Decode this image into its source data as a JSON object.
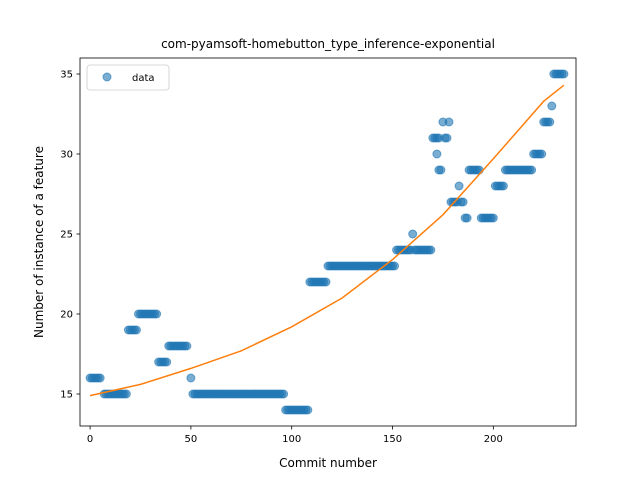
{
  "chart_data": {
    "type": "scatter",
    "title": "com-pyamsoft-homebutton_type_inference-exponential",
    "xlabel": "Commit number",
    "ylabel": "Number of instance of a feature",
    "xlim": [
      -5,
      241
    ],
    "ylim": [
      13,
      36
    ],
    "xticks": [
      0,
      50,
      100,
      150,
      200
    ],
    "yticks": [
      15,
      20,
      25,
      30,
      35
    ],
    "grid": false,
    "legend": {
      "placement": "top-left",
      "entries": [
        "data"
      ]
    },
    "colors": {
      "data": "#1f77b4",
      "fit": "#ff7f0e"
    },
    "series": [
      {
        "name": "data",
        "kind": "scatter",
        "points": [
          [
            0,
            16
          ],
          [
            1,
            16
          ],
          [
            2,
            16
          ],
          [
            3,
            16
          ],
          [
            4,
            16
          ],
          [
            5,
            16
          ],
          [
            7,
            15
          ],
          [
            8,
            15
          ],
          [
            9,
            15
          ],
          [
            10,
            15
          ],
          [
            11,
            15
          ],
          [
            12,
            15
          ],
          [
            13,
            15
          ],
          [
            14,
            15
          ],
          [
            15,
            15
          ],
          [
            16,
            15
          ],
          [
            17,
            15
          ],
          [
            18,
            15
          ],
          [
            19,
            19
          ],
          [
            20,
            19
          ],
          [
            21,
            19
          ],
          [
            22,
            19
          ],
          [
            23,
            19
          ],
          [
            24,
            20
          ],
          [
            25,
            20
          ],
          [
            26,
            20
          ],
          [
            27,
            20
          ],
          [
            28,
            20
          ],
          [
            29,
            20
          ],
          [
            30,
            20
          ],
          [
            31,
            20
          ],
          [
            32,
            20
          ],
          [
            33,
            20
          ],
          [
            34,
            17
          ],
          [
            35,
            17
          ],
          [
            36,
            17
          ],
          [
            37,
            17
          ],
          [
            38,
            17
          ],
          [
            39,
            18
          ],
          [
            40,
            18
          ],
          [
            41,
            18
          ],
          [
            42,
            18
          ],
          [
            43,
            18
          ],
          [
            44,
            18
          ],
          [
            45,
            18
          ],
          [
            46,
            18
          ],
          [
            47,
            18
          ],
          [
            48,
            18
          ],
          [
            50,
            16
          ],
          [
            51,
            15
          ],
          [
            52,
            15
          ],
          [
            53,
            15
          ],
          [
            54,
            15
          ],
          [
            55,
            15
          ],
          [
            56,
            15
          ],
          [
            57,
            15
          ],
          [
            58,
            15
          ],
          [
            59,
            15
          ],
          [
            60,
            15
          ],
          [
            61,
            15
          ],
          [
            62,
            15
          ],
          [
            63,
            15
          ],
          [
            64,
            15
          ],
          [
            65,
            15
          ],
          [
            66,
            15
          ],
          [
            67,
            15
          ],
          [
            68,
            15
          ],
          [
            69,
            15
          ],
          [
            70,
            15
          ],
          [
            71,
            15
          ],
          [
            72,
            15
          ],
          [
            73,
            15
          ],
          [
            74,
            15
          ],
          [
            75,
            15
          ],
          [
            76,
            15
          ],
          [
            77,
            15
          ],
          [
            78,
            15
          ],
          [
            79,
            15
          ],
          [
            80,
            15
          ],
          [
            81,
            15
          ],
          [
            82,
            15
          ],
          [
            83,
            15
          ],
          [
            84,
            15
          ],
          [
            85,
            15
          ],
          [
            86,
            15
          ],
          [
            87,
            15
          ],
          [
            88,
            15
          ],
          [
            89,
            15
          ],
          [
            90,
            15
          ],
          [
            91,
            15
          ],
          [
            92,
            15
          ],
          [
            93,
            15
          ],
          [
            94,
            15
          ],
          [
            95,
            15
          ],
          [
            96,
            15
          ],
          [
            97,
            14
          ],
          [
            98,
            14
          ],
          [
            99,
            14
          ],
          [
            100,
            14
          ],
          [
            101,
            14
          ],
          [
            102,
            14
          ],
          [
            103,
            14
          ],
          [
            104,
            14
          ],
          [
            105,
            14
          ],
          [
            106,
            14
          ],
          [
            107,
            14
          ],
          [
            108,
            14
          ],
          [
            109,
            22
          ],
          [
            110,
            22
          ],
          [
            111,
            22
          ],
          [
            112,
            22
          ],
          [
            113,
            22
          ],
          [
            114,
            22
          ],
          [
            115,
            22
          ],
          [
            116,
            22
          ],
          [
            117,
            22
          ],
          [
            118,
            23
          ],
          [
            119,
            23
          ],
          [
            120,
            23
          ],
          [
            121,
            23
          ],
          [
            122,
            23
          ],
          [
            123,
            23
          ],
          [
            124,
            23
          ],
          [
            125,
            23
          ],
          [
            126,
            23
          ],
          [
            127,
            23
          ],
          [
            128,
            23
          ],
          [
            129,
            23
          ],
          [
            130,
            23
          ],
          [
            131,
            23
          ],
          [
            132,
            23
          ],
          [
            133,
            23
          ],
          [
            134,
            23
          ],
          [
            135,
            23
          ],
          [
            136,
            23
          ],
          [
            137,
            23
          ],
          [
            138,
            23
          ],
          [
            139,
            23
          ],
          [
            140,
            23
          ],
          [
            141,
            23
          ],
          [
            142,
            23
          ],
          [
            143,
            23
          ],
          [
            144,
            23
          ],
          [
            145,
            23
          ],
          [
            146,
            23
          ],
          [
            147,
            23
          ],
          [
            148,
            23
          ],
          [
            149,
            23
          ],
          [
            150,
            23
          ],
          [
            151,
            23
          ],
          [
            152,
            24
          ],
          [
            153,
            24
          ],
          [
            154,
            24
          ],
          [
            155,
            24
          ],
          [
            156,
            24
          ],
          [
            157,
            24
          ],
          [
            158,
            24
          ],
          [
            159,
            24
          ],
          [
            160,
            25
          ],
          [
            161,
            24
          ],
          [
            162,
            24
          ],
          [
            163,
            24
          ],
          [
            164,
            24
          ],
          [
            165,
            24
          ],
          [
            166,
            24
          ],
          [
            167,
            24
          ],
          [
            168,
            24
          ],
          [
            169,
            24
          ],
          [
            170,
            31
          ],
          [
            171,
            31
          ],
          [
            172,
            31
          ],
          [
            173,
            31
          ],
          [
            172,
            30
          ],
          [
            173,
            29
          ],
          [
            174,
            29
          ],
          [
            175,
            32
          ],
          [
            176,
            31
          ],
          [
            177,
            31
          ],
          [
            178,
            32
          ],
          [
            179,
            27
          ],
          [
            180,
            27
          ],
          [
            181,
            27
          ],
          [
            182,
            27
          ],
          [
            183,
            28
          ],
          [
            184,
            27
          ],
          [
            185,
            27
          ],
          [
            186,
            26
          ],
          [
            187,
            26
          ],
          [
            188,
            29
          ],
          [
            189,
            29
          ],
          [
            190,
            29
          ],
          [
            191,
            29
          ],
          [
            192,
            29
          ],
          [
            193,
            29
          ],
          [
            194,
            26
          ],
          [
            195,
            26
          ],
          [
            196,
            26
          ],
          [
            197,
            26
          ],
          [
            198,
            26
          ],
          [
            199,
            26
          ],
          [
            200,
            26
          ],
          [
            201,
            28
          ],
          [
            202,
            28
          ],
          [
            203,
            28
          ],
          [
            204,
            28
          ],
          [
            205,
            28
          ],
          [
            206,
            29
          ],
          [
            207,
            29
          ],
          [
            208,
            29
          ],
          [
            209,
            29
          ],
          [
            210,
            29
          ],
          [
            211,
            29
          ],
          [
            212,
            29
          ],
          [
            213,
            29
          ],
          [
            214,
            29
          ],
          [
            215,
            29
          ],
          [
            216,
            29
          ],
          [
            217,
            29
          ],
          [
            218,
            29
          ],
          [
            219,
            29
          ],
          [
            220,
            30
          ],
          [
            221,
            30
          ],
          [
            222,
            30
          ],
          [
            223,
            30
          ],
          [
            224,
            30
          ],
          [
            225,
            32
          ],
          [
            226,
            32
          ],
          [
            227,
            32
          ],
          [
            228,
            32
          ],
          [
            229,
            33
          ],
          [
            230,
            35
          ],
          [
            231,
            35
          ],
          [
            232,
            35
          ],
          [
            233,
            35
          ],
          [
            234,
            35
          ],
          [
            235,
            35
          ]
        ]
      },
      {
        "kind": "line",
        "points": [
          [
            0,
            14.9
          ],
          [
            25,
            15.6
          ],
          [
            50,
            16.6
          ],
          [
            75,
            17.7
          ],
          [
            100,
            19.2
          ],
          [
            125,
            21.0
          ],
          [
            150,
            23.4
          ],
          [
            175,
            26.2
          ],
          [
            200,
            29.7
          ],
          [
            225,
            33.3
          ],
          [
            235,
            34.3
          ]
        ]
      }
    ]
  }
}
